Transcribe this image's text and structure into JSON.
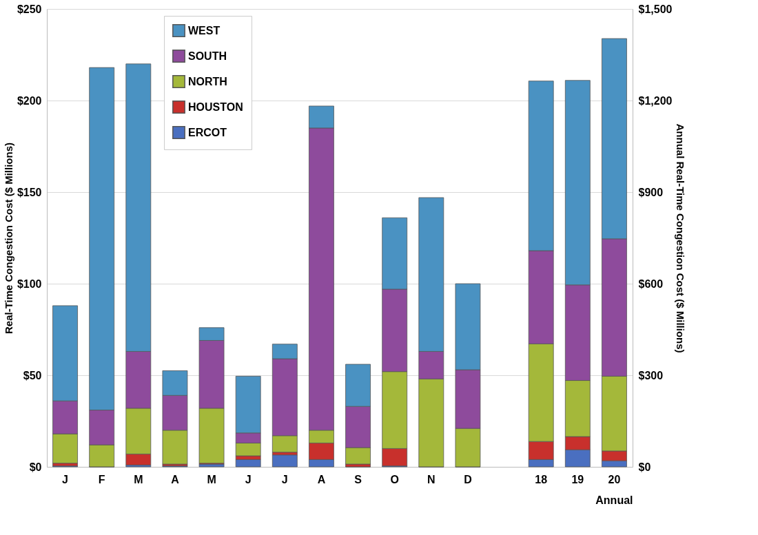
{
  "chart_data": {
    "type": "bar",
    "stacked": true,
    "categories": [
      "J",
      "F",
      "M",
      "A",
      "M",
      "J",
      "J",
      "A",
      "S",
      "O",
      "N",
      "D",
      null,
      "18",
      "19",
      "20"
    ],
    "xlabel": "Annual",
    "ylabel": "Real-Time Congestion Cost ($ Millions)",
    "y2label": "Annual Real-Time Congestion Cost ($ Millions)",
    "series": [
      {
        "name": "ERCOT",
        "color": "#4a6fc0",
        "values": [
          0.5,
          0,
          1,
          0.5,
          1.5,
          4,
          6.5,
          4,
          0,
          0.5,
          0,
          0,
          null,
          null,
          null,
          null
        ]
      },
      {
        "name": "HOUSTON",
        "color": "#c8302c",
        "values": [
          1.5,
          0,
          6,
          1,
          0.5,
          2,
          1.5,
          9,
          1.5,
          9.5,
          0,
          0,
          null,
          null,
          null,
          null
        ]
      },
      {
        "name": "NORTH",
        "color": "#a4b83a",
        "values": [
          16,
          12,
          25,
          18.5,
          30,
          7,
          9,
          7,
          9,
          42,
          48,
          21,
          null,
          null,
          null,
          null
        ]
      },
      {
        "name": "SOUTH",
        "color": "#8e4b9c",
        "values": [
          18,
          19,
          31,
          19,
          37,
          5.5,
          42,
          165,
          22.5,
          45,
          15,
          32,
          null,
          null,
          null,
          null
        ]
      },
      {
        "name": "WEST",
        "color": "#4a92c2",
        "values": [
          52,
          187,
          157,
          13.5,
          7,
          31,
          8,
          12,
          23,
          39,
          84,
          47,
          null,
          null,
          null,
          null
        ]
      },
      {
        "color": "#4a6fc0",
        "axis": "y2",
        "values": [
          null,
          null,
          null,
          null,
          null,
          null,
          null,
          null,
          null,
          null,
          null,
          null,
          null,
          24,
          56,
          20
        ]
      },
      {
        "color": "#c8302c",
        "axis": "y2",
        "values": [
          null,
          null,
          null,
          null,
          null,
          null,
          null,
          null,
          null,
          null,
          null,
          null,
          null,
          59,
          43,
          32
        ]
      },
      {
        "color": "#a4b83a",
        "axis": "y2",
        "values": [
          null,
          null,
          null,
          null,
          null,
          null,
          null,
          null,
          null,
          null,
          null,
          null,
          null,
          320,
          184,
          245
        ]
      },
      {
        "color": "#8e4b9c",
        "axis": "y2",
        "values": [
          null,
          null,
          null,
          null,
          null,
          null,
          null,
          null,
          null,
          null,
          null,
          null,
          null,
          305,
          313,
          450
        ]
      },
      {
        "color": "#4a92c2",
        "axis": "y2",
        "values": [
          null,
          null,
          null,
          null,
          null,
          null,
          null,
          null,
          null,
          null,
          null,
          null,
          null,
          556,
          670,
          656
        ]
      }
    ],
    "ylim": [
      0,
      250
    ],
    "yticks": [
      {
        "value": 0,
        "label": "$0"
      },
      {
        "value": 50,
        "label": "$50"
      },
      {
        "value": 100,
        "label": "$100"
      },
      {
        "value": 150,
        "label": "$150"
      },
      {
        "value": 200,
        "label": "$200"
      },
      {
        "value": 250,
        "label": "$250"
      }
    ],
    "y2lim": [
      0,
      1500
    ],
    "y2ticks": [
      {
        "value": 0,
        "label": "$0"
      },
      {
        "value": 300,
        "label": "$300"
      },
      {
        "value": 600,
        "label": "$600"
      },
      {
        "value": 900,
        "label": "$900"
      },
      {
        "value": 1200,
        "label": "$1,200"
      },
      {
        "value": 1500,
        "label": "$1,500"
      }
    ],
    "grid": "y",
    "legend": "top left"
  }
}
